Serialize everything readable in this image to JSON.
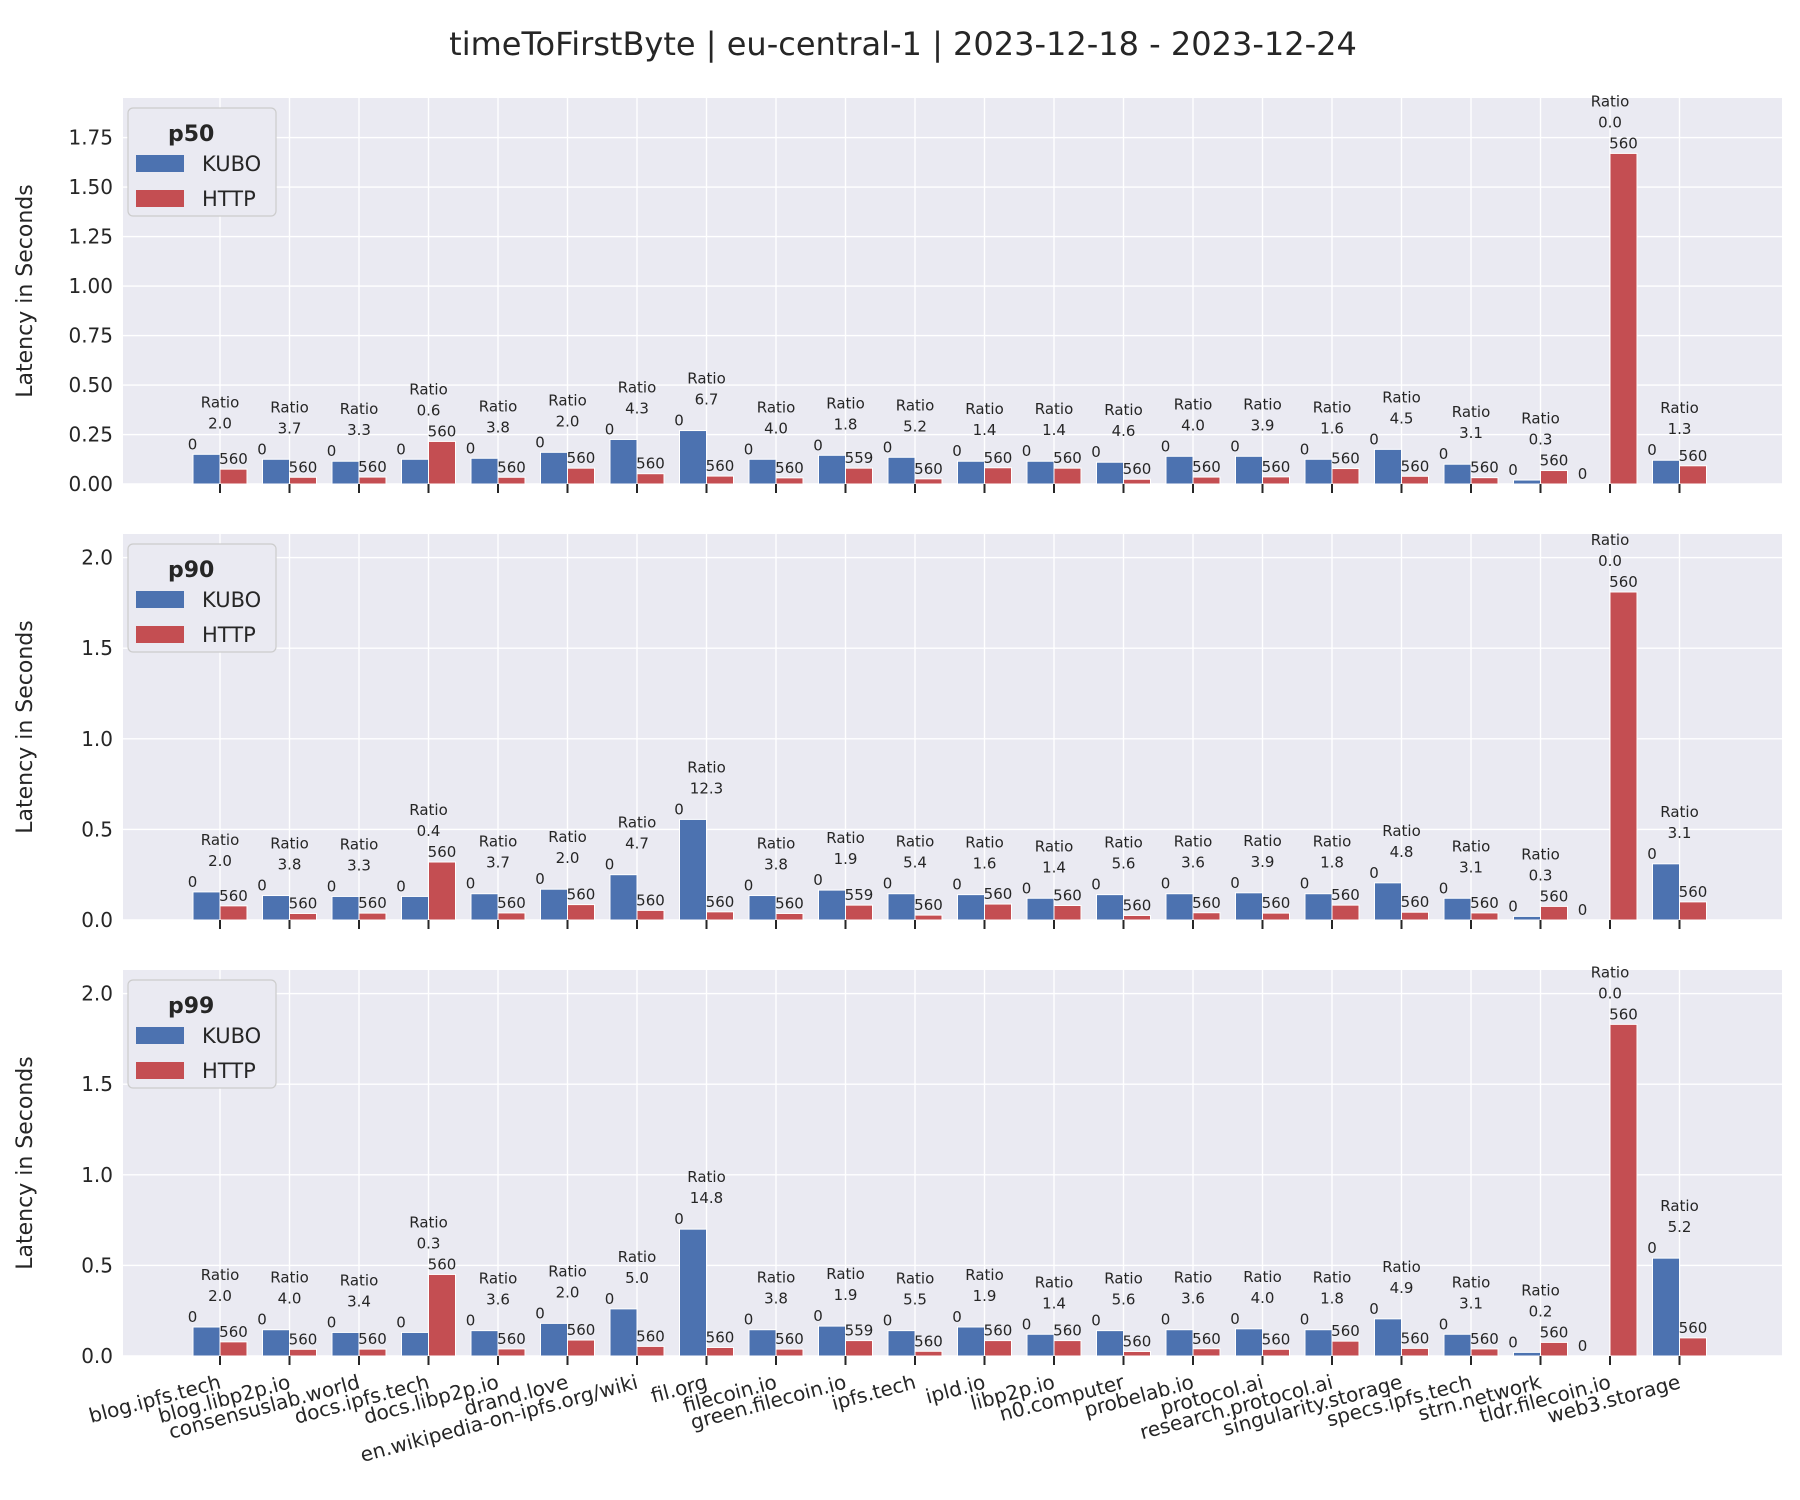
{
  "chart_data": {
    "type": "bar",
    "title": "timeToFirstByte | eu-central-1 | 2023-12-18 - 2023-12-24",
    "ylabel": "Latency in Seconds",
    "categories": [
      "blog.ipfs.tech",
      "blog.libp2p.io",
      "consensuslab.world",
      "docs.ipfs.tech",
      "docs.libp2p.io",
      "drand.love",
      "en.wikipedia-on-ipfs.org/wiki",
      "fil.org",
      "filecoin.io",
      "green.filecoin.io",
      "ipfs.tech",
      "ipld.io",
      "libp2p.io",
      "n0.computer",
      "probelab.io",
      "protocol.ai",
      "research.protocol.ai",
      "singularity.storage",
      "specs.ipfs.tech",
      "strn.network",
      "tldr.filecoin.io",
      "web3.storage"
    ],
    "series_colors": {
      "KUBO": "#4c72b0",
      "HTTP": "#c44e52"
    },
    "ratio_word": "Ratio",
    "panels": [
      {
        "legend_title": "p50",
        "legend_position": "upper-left",
        "ylim": [
          0,
          1.95
        ],
        "yticks": [
          0.0,
          0.25,
          0.5,
          0.75,
          1.0,
          1.25,
          1.5,
          1.75
        ],
        "ytick_labels": [
          "0.00",
          "0.25",
          "0.50",
          "0.75",
          "1.00",
          "1.25",
          "1.50",
          "1.75"
        ],
        "series": [
          {
            "name": "KUBO",
            "values": [
              0.15,
              0.125,
              0.115,
              0.125,
              0.13,
              0.16,
              0.225,
              0.27,
              0.125,
              0.145,
              0.135,
              0.115,
              0.115,
              0.11,
              0.14,
              0.14,
              0.125,
              0.175,
              0.1,
              0.02,
              0.0,
              0.12
            ],
            "counts": [
              "0",
              "0",
              "0",
              "0",
              "0",
              "0",
              "0",
              "0",
              "0",
              "0",
              "0",
              "0",
              "0",
              "0",
              "0",
              "0",
              "0",
              "0",
              "0",
              "0",
              "0",
              "0"
            ]
          },
          {
            "name": "HTTP",
            "values": [
              0.075,
              0.034,
              0.035,
              0.215,
              0.034,
              0.08,
              0.052,
              0.04,
              0.031,
              0.08,
              0.026,
              0.082,
              0.08,
              0.024,
              0.035,
              0.036,
              0.078,
              0.039,
              0.032,
              0.068,
              1.67,
              0.092
            ],
            "counts": [
              "560",
              "560",
              "560",
              "560",
              "560",
              "560",
              "560",
              "560",
              "560",
              "559",
              "560",
              "560",
              "560",
              "560",
              "560",
              "560",
              "560",
              "560",
              "560",
              "560",
              "560",
              "560"
            ]
          }
        ],
        "ratios": [
          "2.0",
          "3.7",
          "3.3",
          "0.6",
          "3.8",
          "2.0",
          "4.3",
          "6.7",
          "4.0",
          "1.8",
          "5.2",
          "1.4",
          "1.4",
          "4.6",
          "4.0",
          "3.9",
          "1.6",
          "4.5",
          "3.1",
          "0.3",
          "0.0",
          "1.3"
        ]
      },
      {
        "legend_title": "p90",
        "legend_position": "upper-left",
        "ylim": [
          0,
          2.13
        ],
        "yticks": [
          0.0,
          0.5,
          1.0,
          1.5,
          2.0
        ],
        "ytick_labels": [
          "0.0",
          "0.5",
          "1.0",
          "1.5",
          "2.0"
        ],
        "series": [
          {
            "name": "KUBO",
            "values": [
              0.155,
              0.135,
              0.13,
              0.13,
              0.145,
              0.17,
              0.25,
              0.555,
              0.135,
              0.165,
              0.145,
              0.14,
              0.12,
              0.14,
              0.145,
              0.15,
              0.145,
              0.205,
              0.12,
              0.02,
              0.0,
              0.31
            ],
            "counts": [
              "0",
              "0",
              "0",
              "0",
              "0",
              "0",
              "0",
              "0",
              "0",
              "0",
              "0",
              "0",
              "0",
              "0",
              "0",
              "0",
              "0",
              "0",
              "0",
              "0",
              "0",
              "0"
            ]
          },
          {
            "name": "HTTP",
            "values": [
              0.078,
              0.036,
              0.038,
              0.32,
              0.039,
              0.085,
              0.053,
              0.045,
              0.036,
              0.082,
              0.027,
              0.088,
              0.08,
              0.025,
              0.04,
              0.038,
              0.082,
              0.043,
              0.039,
              0.075,
              1.81,
              0.1
            ],
            "counts": [
              "560",
              "560",
              "560",
              "560",
              "560",
              "560",
              "560",
              "560",
              "560",
              "559",
              "560",
              "560",
              "560",
              "560",
              "560",
              "560",
              "560",
              "560",
              "560",
              "560",
              "560",
              "560"
            ]
          }
        ],
        "ratios": [
          "2.0",
          "3.8",
          "3.3",
          "0.4",
          "3.7",
          "2.0",
          "4.7",
          "12.3",
          "3.8",
          "1.9",
          "5.4",
          "1.6",
          "1.4",
          "5.6",
          "3.6",
          "3.9",
          "1.8",
          "4.8",
          "3.1",
          "0.3",
          "0.0",
          "3.1"
        ]
      },
      {
        "legend_title": "p99",
        "legend_position": "upper-left",
        "ylim": [
          0,
          2.13
        ],
        "yticks": [
          0.0,
          0.5,
          1.0,
          1.5,
          2.0
        ],
        "ytick_labels": [
          "0.0",
          "0.5",
          "1.0",
          "1.5",
          "2.0"
        ],
        "series": [
          {
            "name": "KUBO",
            "values": [
              0.16,
              0.145,
              0.13,
              0.13,
              0.14,
              0.18,
              0.26,
              0.7,
              0.145,
              0.165,
              0.14,
              0.16,
              0.12,
              0.14,
              0.145,
              0.15,
              0.145,
              0.205,
              0.12,
              0.02,
              0.0,
              0.54
            ],
            "counts": [
              "0",
              "0",
              "0",
              "0",
              "0",
              "0",
              "0",
              "0",
              "0",
              "0",
              "0",
              "0",
              "0",
              "0",
              "0",
              "0",
              "0",
              "0",
              "0",
              "0",
              "0",
              "0"
            ]
          },
          {
            "name": "HTTP",
            "values": [
              0.078,
              0.037,
              0.038,
              0.45,
              0.039,
              0.088,
              0.053,
              0.047,
              0.038,
              0.085,
              0.026,
              0.085,
              0.085,
              0.025,
              0.04,
              0.037,
              0.082,
              0.042,
              0.039,
              0.075,
              1.83,
              0.1
            ],
            "counts": [
              "560",
              "560",
              "560",
              "560",
              "560",
              "560",
              "560",
              "560",
              "560",
              "559",
              "560",
              "560",
              "560",
              "560",
              "560",
              "560",
              "560",
              "560",
              "560",
              "560",
              "560",
              "560"
            ]
          }
        ],
        "ratios": [
          "2.0",
          "4.0",
          "3.4",
          "0.3",
          "3.6",
          "2.0",
          "5.0",
          "14.8",
          "3.8",
          "1.9",
          "5.5",
          "1.9",
          "1.4",
          "5.6",
          "3.6",
          "4.0",
          "1.8",
          "4.9",
          "3.1",
          "0.2",
          "0.0",
          "5.2"
        ]
      }
    ]
  }
}
